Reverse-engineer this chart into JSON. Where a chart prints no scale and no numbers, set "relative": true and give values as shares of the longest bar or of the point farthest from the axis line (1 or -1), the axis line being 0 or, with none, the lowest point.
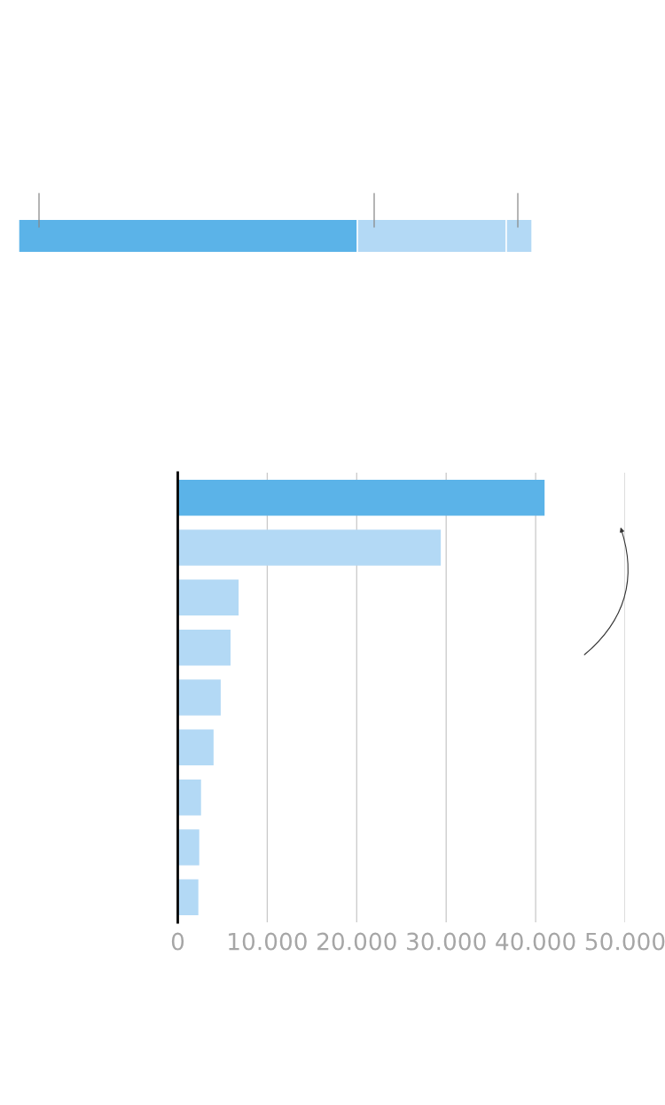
{
  "chart_data": [
    {
      "type": "bar",
      "orientation": "horizontal",
      "stacked": true,
      "relative": true,
      "categories": [
        null
      ],
      "tick_labels": false,
      "grid": false,
      "legend": false,
      "series": [
        {
          "color": "#5bb3e8",
          "values": [
            0.66
          ]
        },
        {
          "color": "#b3d9f5",
          "values": [
            0.29
          ]
        },
        {
          "color": "#b3d9f5",
          "values": [
            0.05
          ]
        }
      ]
    },
    {
      "type": "bar",
      "orientation": "horizontal",
      "categories": [
        null,
        null,
        null,
        null,
        null,
        null,
        null,
        null,
        null
      ],
      "values": [
        41000,
        29400,
        6800,
        5900,
        4800,
        4000,
        2600,
        2400,
        2300
      ],
      "colors": [
        "#5bb3e8",
        "#b3d9f5",
        "#b3d9f5",
        "#b3d9f5",
        "#b3d9f5",
        "#b3d9f5",
        "#b3d9f5",
        "#b3d9f5",
        "#b3d9f5"
      ],
      "xlim": [
        0,
        50000
      ],
      "xticks": [
        0,
        {
          "value": 10000,
          "label": "10.000"
        },
        {
          "value": 20000,
          "label": "20.000"
        },
        {
          "value": 30000,
          "label": "30.000"
        },
        {
          "value": 40000,
          "label": "40.000"
        },
        {
          "value": 50000,
          "label": "50.000"
        }
      ],
      "tick_labels": "x",
      "grid": "x",
      "legend": false
    }
  ]
}
